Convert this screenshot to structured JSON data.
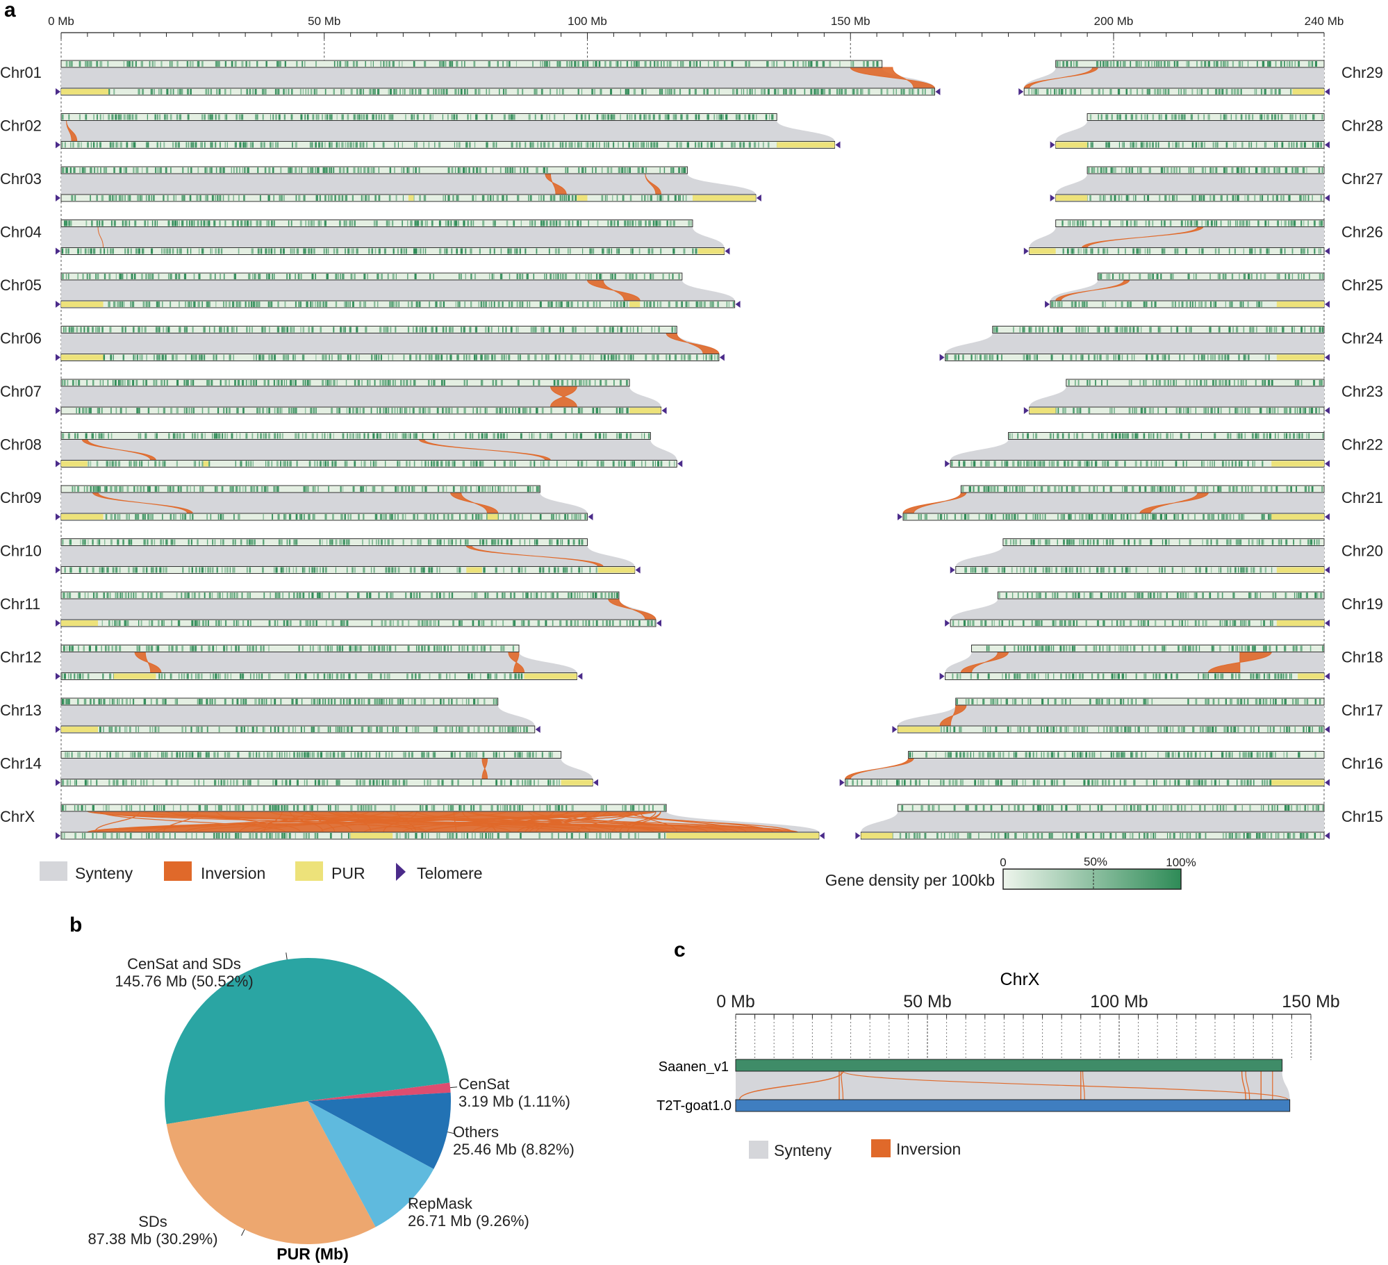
{
  "panel_a": {
    "label": "a",
    "axis_ticks": [
      "0 Mb",
      "50 Mb",
      "100 Mb",
      "150 Mb",
      "200 Mb",
      "240 Mb"
    ],
    "axis_tick_values": [
      0,
      50,
      100,
      150,
      200,
      240
    ],
    "legend": {
      "synteny": "Synteny",
      "inversion": "Inversion",
      "pur": "PUR",
      "telomere": "Telomere"
    },
    "gene_density": {
      "title": "Gene density per 100kb",
      "ticks": [
        "0",
        "50%",
        "100%"
      ]
    },
    "colors": {
      "synteny": "#d5d6da",
      "inversion": "#e0692a",
      "pur": "#ede27a",
      "telomere": "#4b2b8a",
      "density_high": "#2e8b57",
      "density_low": "#e4efe2"
    }
  },
  "panel_b": {
    "label": "b",
    "title": "PUR (Mb)"
  },
  "panel_c": {
    "label": "c",
    "title": "ChrX",
    "ticks": [
      "0 Mb",
      "50 Mb",
      "100 Mb",
      "150 Mb"
    ],
    "tick_values": [
      0,
      50,
      100,
      150
    ],
    "tracks": [
      "Saanen_v1",
      "T2T-goat1.0"
    ],
    "legend": {
      "synteny": "Synteny",
      "inversion": "Inversion"
    },
    "colors": {
      "top": "#3f8c68",
      "bottom": "#3f7ec0",
      "synteny": "#d5d6da",
      "inversion": "#e0692a"
    }
  },
  "chart_data": [
    {
      "type": "synteny",
      "panel": "a",
      "xlabel": "Mb",
      "xlim": [
        0,
        240
      ],
      "left_side": [
        {
          "name": "Chr01",
          "top_mb": 156,
          "bottom_mb": 166,
          "pur": [
            [
              0,
              9
            ]
          ],
          "inversions": [
            [
              150,
              158,
              162,
              166
            ]
          ]
        },
        {
          "name": "Chr02",
          "top_mb": 136,
          "bottom_mb": 147,
          "pur": [
            [
              136,
              147
            ]
          ],
          "inversions": [
            [
              1,
              1,
              2,
              3
            ]
          ]
        },
        {
          "name": "Chr03",
          "top_mb": 119,
          "bottom_mb": 132,
          "pur": [
            [
              120,
              132
            ],
            [
              66,
              67
            ],
            [
              98,
              100
            ]
          ],
          "inversions": [
            [
              111,
              111,
              113,
              114
            ],
            [
              92,
              93,
              94,
              96
            ]
          ]
        },
        {
          "name": "Chr04",
          "top_mb": 120,
          "bottom_mb": 126,
          "pur": [
            [
              121,
              126
            ]
          ],
          "inversions": [
            [
              7,
              7,
              8,
              8
            ]
          ]
        },
        {
          "name": "Chr05",
          "top_mb": 118,
          "bottom_mb": 128,
          "pur": [
            [
              0,
              8
            ],
            [
              108,
              110
            ]
          ],
          "inversions": [
            [
              100,
              103,
              107,
              110
            ]
          ]
        },
        {
          "name": "Chr06",
          "top_mb": 117,
          "bottom_mb": 125,
          "pur": [
            [
              0,
              8
            ]
          ],
          "inversions": [
            [
              115,
              117,
              122,
              125
            ]
          ]
        },
        {
          "name": "Chr07",
          "top_mb": 108,
          "bottom_mb": 114,
          "pur": [
            [
              108,
              114
            ]
          ],
          "inversions": [
            [
              93,
              98,
              93,
              98
            ]
          ]
        },
        {
          "name": "Chr08",
          "top_mb": 112,
          "bottom_mb": 117,
          "pur": [
            [
              0,
              5
            ],
            [
              27,
              28
            ]
          ],
          "inversions": [
            [
              4,
              5,
              17,
              18
            ],
            [
              68,
              69,
              92,
              93
            ]
          ]
        },
        {
          "name": "Chr09",
          "top_mb": 91,
          "bottom_mb": 100,
          "pur": [
            [
              0,
              8
            ],
            [
              81,
              83
            ]
          ],
          "inversions": [
            [
              6,
              7,
              24,
              25
            ],
            [
              74,
              76,
              81,
              83
            ]
          ]
        },
        {
          "name": "Chr10",
          "top_mb": 100,
          "bottom_mb": 109,
          "pur": [
            [
              102,
              109
            ],
            [
              77,
              80
            ]
          ],
          "inversions": [
            [
              77,
              78,
              102,
              103
            ]
          ]
        },
        {
          "name": "Chr11",
          "top_mb": 106,
          "bottom_mb": 113,
          "pur": [
            [
              0,
              7
            ]
          ],
          "inversions": [
            [
              104,
              106,
              111,
              113
            ]
          ]
        },
        {
          "name": "Chr12",
          "top_mb": 87,
          "bottom_mb": 98,
          "pur": [
            [
              88,
              98
            ],
            [
              10,
              18
            ]
          ],
          "inversions": [
            [
              85,
              87,
              86,
              88
            ],
            [
              14,
              16,
              17,
              19
            ]
          ]
        },
        {
          "name": "Chr13",
          "top_mb": 83,
          "bottom_mb": 90,
          "pur": [
            [
              0,
              7
            ]
          ],
          "inversions": []
        },
        {
          "name": "Chr14",
          "top_mb": 95,
          "bottom_mb": 101,
          "pur": [
            [
              95,
              101
            ]
          ],
          "inversions": [
            [
              80,
              81,
              80,
              81
            ]
          ]
        },
        {
          "name": "ChrX",
          "top_mb": 115,
          "bottom_mb": 144,
          "pur": [
            [
              55,
              63
            ],
            [
              115,
              144
            ]
          ],
          "inversions": [
            [
              5,
              113,
              5,
              140
            ]
          ]
        }
      ],
      "right_side": [
        {
          "name": "Chr29",
          "top_mb": 51,
          "bottom_mb": 57,
          "pur": [
            [
              51,
              57
            ]
          ],
          "inversions": [
            [
              7,
              8,
              0,
              1
            ]
          ]
        },
        {
          "name": "Chr28",
          "top_mb": 45,
          "bottom_mb": 51,
          "pur": [
            [
              0,
              6
            ]
          ],
          "inversions": []
        },
        {
          "name": "Chr27",
          "top_mb": 45,
          "bottom_mb": 51,
          "pur": [
            [
              0,
              6
            ]
          ],
          "inversions": []
        },
        {
          "name": "Chr26",
          "top_mb": 51,
          "bottom_mb": 56,
          "pur": [
            [
              0,
              5
            ]
          ],
          "inversions": [
            [
              27,
              28,
              10,
              11
            ]
          ]
        },
        {
          "name": "Chr25",
          "top_mb": 43,
          "bottom_mb": 52,
          "pur": [
            [
              43,
              52
            ]
          ],
          "inversions": [
            [
              5,
              6,
              1,
              2
            ]
          ]
        },
        {
          "name": "Chr24",
          "top_mb": 63,
          "bottom_mb": 72,
          "pur": [
            [
              63,
              72
            ]
          ],
          "inversions": []
        },
        {
          "name": "Chr23",
          "top_mb": 49,
          "bottom_mb": 56,
          "pur": [
            [
              0,
              5
            ]
          ],
          "inversions": []
        },
        {
          "name": "Chr22",
          "top_mb": 60,
          "bottom_mb": 71,
          "pur": [
            [
              61,
              71
            ]
          ],
          "inversions": []
        },
        {
          "name": "Chr21",
          "top_mb": 69,
          "bottom_mb": 80,
          "pur": [
            [
              70,
              80
            ]
          ],
          "inversions": [
            [
              0,
              1,
              0,
              2
            ],
            [
              45,
              47,
              45,
              47
            ]
          ]
        },
        {
          "name": "Chr20",
          "top_mb": 61,
          "bottom_mb": 70,
          "pur": [
            [
              61,
              70
            ]
          ],
          "inversions": []
        },
        {
          "name": "Chr19",
          "top_mb": 62,
          "bottom_mb": 71,
          "pur": [
            [
              62,
              71
            ]
          ],
          "inversions": []
        },
        {
          "name": "Chr18",
          "top_mb": 67,
          "bottom_mb": 72,
          "pur": [
            [
              67,
              72
            ]
          ],
          "inversions": [
            [
              5,
              7,
              3,
              5
            ],
            [
              51,
              57,
              50,
              56
            ]
          ]
        },
        {
          "name": "Chr17",
          "top_mb": 70,
          "bottom_mb": 81,
          "pur": [
            [
              0,
              8
            ]
          ],
          "inversions": [
            [
              0,
              2,
              8,
              10
            ]
          ]
        },
        {
          "name": "Chr16",
          "top_mb": 79,
          "bottom_mb": 91,
          "pur": [
            [
              81,
              91
            ]
          ],
          "inversions": [
            [
              0,
              1,
              0,
              1
            ]
          ]
        },
        {
          "name": "Chr15",
          "top_mb": 81,
          "bottom_mb": 88,
          "pur": [
            [
              0,
              6
            ]
          ],
          "inversions": []
        }
      ]
    },
    {
      "type": "pie",
      "panel": "b",
      "title": "PUR (Mb)",
      "slices": [
        {
          "name": "CenSat and SDs",
          "value": 145.76,
          "percent": 50.52,
          "label": "145.76 Mb (50.52%)",
          "color": "#2aa5a3"
        },
        {
          "name": "CenSat",
          "value": 3.19,
          "percent": 1.11,
          "label": "3.19 Mb (1.11%)",
          "color": "#dd4d70"
        },
        {
          "name": "Others",
          "value": 25.46,
          "percent": 8.82,
          "label": "25.46 Mb (8.82%)",
          "color": "#2272b4"
        },
        {
          "name": "RepMask",
          "value": 26.71,
          "percent": 9.26,
          "label": "26.71 Mb (9.26%)",
          "color": "#5fbade"
        },
        {
          "name": "SDs",
          "value": 87.38,
          "percent": 30.29,
          "label": "87.38 Mb (30.29%)",
          "color": "#eda76f"
        }
      ]
    },
    {
      "type": "synteny",
      "panel": "c",
      "title": "ChrX",
      "xlim": [
        0,
        150
      ],
      "tracks": [
        {
          "name": "Saanen_v1",
          "length_mb": 142.5
        },
        {
          "name": "T2T-goat1.0",
          "length_mb": 144.5
        }
      ],
      "inversions": [
        [
          28,
          28,
          1,
          144
        ],
        [
          27,
          27.5,
          27,
          28
        ],
        [
          90,
          90.5,
          90,
          91
        ],
        [
          132,
          133,
          133,
          134
        ],
        [
          137,
          140,
          137,
          140
        ]
      ]
    }
  ]
}
